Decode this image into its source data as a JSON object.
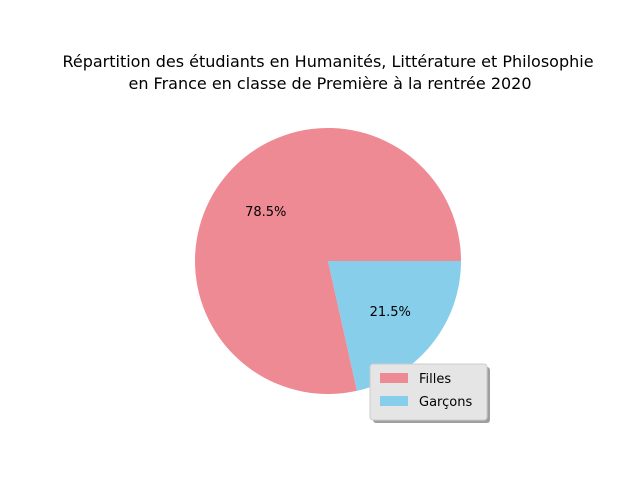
{
  "chart_data": {
    "type": "pie",
    "title_lines": [
      "Répartition des étudiants en Humanités, Littérature et Philosophie",
      "en France en classe de Première à la rentrée 2020"
    ],
    "labels": [
      "Filles",
      "Garçons"
    ],
    "values": [
      78.5,
      21.5
    ],
    "value_labels": [
      "78.5%",
      "21.5%"
    ],
    "colors": [
      "#ee8a93",
      "#87ceeb"
    ],
    "start_angle_deg": 0,
    "direction": "counterclockwise",
    "legend_position": "lower-right"
  }
}
